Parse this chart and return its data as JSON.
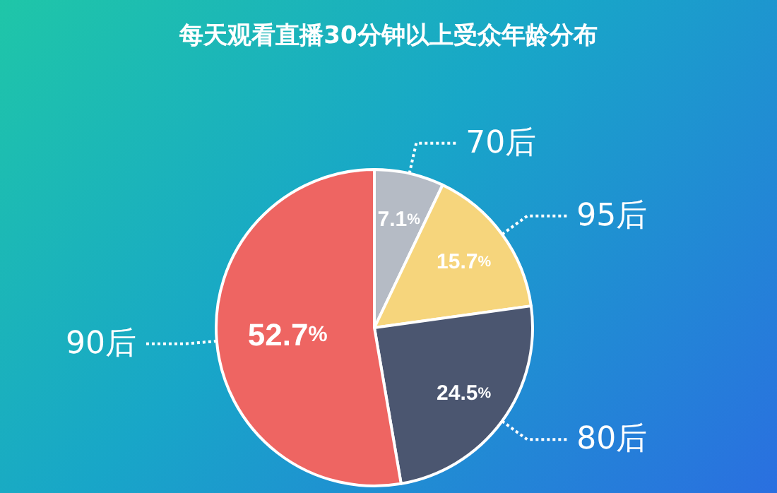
{
  "chart_data": {
    "type": "pie",
    "title": "每天观看直播30分钟以上受众年龄分布",
    "categories": [
      "70后",
      "95后",
      "80后",
      "90后"
    ],
    "values": [
      7.1,
      15.7,
      24.5,
      52.7
    ],
    "colors": [
      "#b5bbc5",
      "#f6d57c",
      "#4b5670",
      "#ee6562"
    ],
    "value_labels": [
      "7.1%",
      "15.7%",
      "24.5%",
      "52.7%"
    ]
  }
}
